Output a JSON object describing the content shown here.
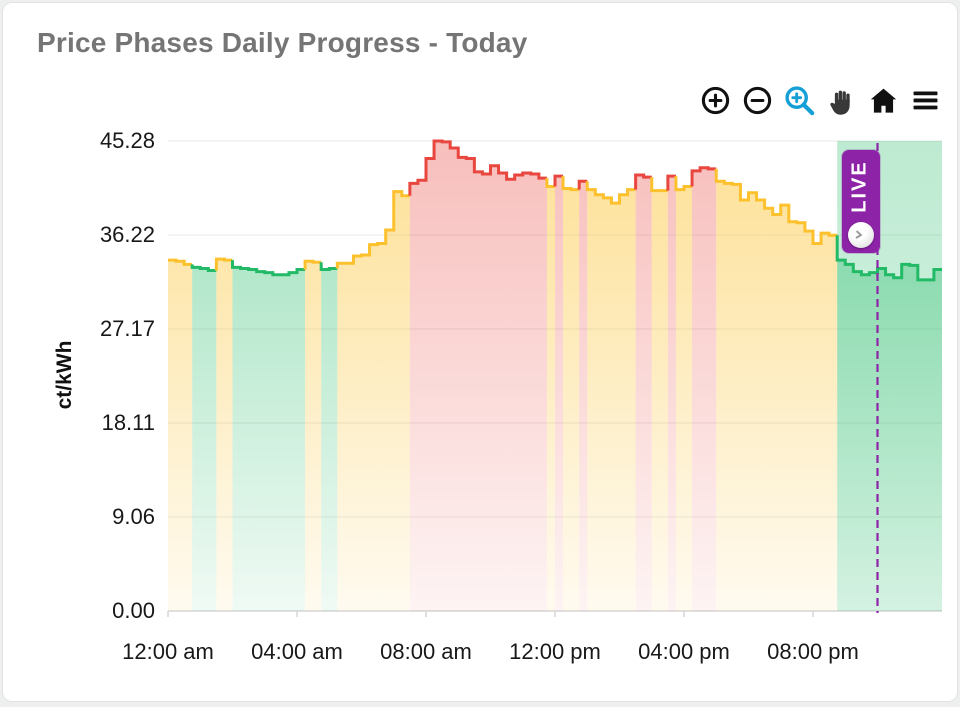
{
  "title": "Price Phases Daily Progress - Today",
  "toolbar": {
    "icons": [
      "zoom-in",
      "zoom-out",
      "box-zoom",
      "pan",
      "reset-home",
      "menu"
    ],
    "active_icon": "box-zoom",
    "active_color": "#149fd7",
    "icon_color": "#111111"
  },
  "live": {
    "label": "LIVE",
    "color": "#8d24a8",
    "line_hour": 22.0,
    "band_start_hour": 20.75,
    "band_end_hour": 24.0
  },
  "chart_data": {
    "type": "area",
    "title": "Price Phases Daily Progress - Today",
    "xlabel": "",
    "ylabel": "ct/kWh",
    "unit": "ct/kWh",
    "start_time": "12:00 am",
    "step_minutes": 15,
    "x_range_hours": [
      0,
      24
    ],
    "ylim": [
      0,
      45.28
    ],
    "grid": "horizontal",
    "yticks": [
      {
        "v": 45.28,
        "label": "45.28"
      },
      {
        "v": 36.22,
        "label": "36.22"
      },
      {
        "v": 27.17,
        "label": "27.17"
      },
      {
        "v": 18.11,
        "label": "18.11"
      },
      {
        "v": 9.06,
        "label": "9.06"
      },
      {
        "v": 0.0,
        "label": "0.00"
      }
    ],
    "xticks": [
      {
        "hour": 0,
        "label": "12:00 am"
      },
      {
        "hour": 4,
        "label": "04:00 am"
      },
      {
        "hour": 8,
        "label": "08:00 am"
      },
      {
        "hour": 12,
        "label": "12:00 pm"
      },
      {
        "hour": 16,
        "label": "04:00 pm"
      },
      {
        "hour": 20,
        "label": "08:00 pm"
      }
    ],
    "phase_colors": {
      "G": "#22ba66",
      "Y": "#fcc12c",
      "R": "#e8463f"
    },
    "phase_names": {
      "G": "green-phase",
      "Y": "yellow-phase",
      "R": "red-phase"
    },
    "values": [
      33.8,
      33.7,
      33.4,
      33.1,
      33.0,
      32.8,
      33.9,
      33.8,
      33.1,
      33.0,
      32.9,
      32.7,
      32.6,
      32.4,
      32.4,
      32.6,
      32.9,
      33.7,
      33.6,
      32.9,
      33.0,
      33.5,
      33.5,
      34.2,
      34.3,
      35.3,
      35.4,
      36.7,
      40.4,
      40.0,
      41.2,
      41.5,
      43.6,
      45.28,
      45.2,
      44.6,
      43.7,
      43.6,
      42.3,
      42.1,
      42.9,
      42.2,
      41.6,
      42.0,
      42.2,
      42.1,
      41.7,
      40.9,
      41.9,
      40.7,
      40.6,
      41.4,
      40.6,
      40.1,
      39.8,
      39.3,
      40.1,
      40.6,
      42.0,
      41.8,
      40.5,
      40.5,
      41.9,
      40.6,
      40.9,
      42.4,
      42.7,
      42.6,
      41.4,
      41.2,
      41.1,
      39.6,
      40.3,
      39.6,
      38.8,
      38.2,
      39.1,
      37.5,
      37.4,
      36.6,
      35.4,
      36.4,
      36.2,
      33.8,
      33.4,
      32.7,
      32.4,
      32.6,
      33.0,
      32.4,
      32.1,
      33.4,
      33.3,
      31.9,
      31.9,
      32.9
    ],
    "phases": "YYYGGGYYGGGGGGGGGYYGGYYYYYYYYYRRRRRRRRRRRRRRRRRYRYYRYYYYYYRRYYRYYRRRYYYYYYYYYYYYYYYGGGGGGGGGGGGG"
  }
}
